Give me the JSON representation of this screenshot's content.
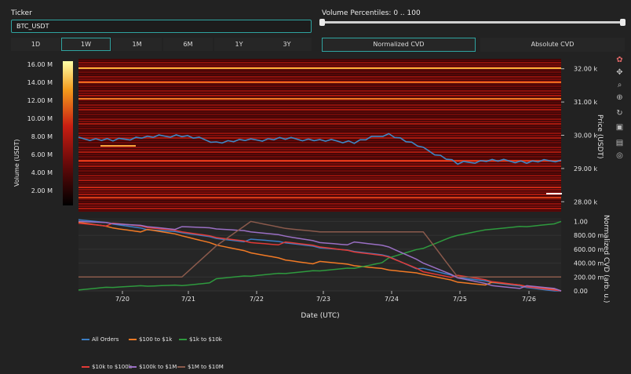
{
  "ticker": {
    "label": "Ticker",
    "value": "BTC_USDT"
  },
  "volume_slider": {
    "label": "Volume Percentiles: 0 .. 100"
  },
  "ranges": [
    "1D",
    "1W",
    "1M",
    "6M",
    "1Y",
    "3Y"
  ],
  "active_range": "1W",
  "toggles": [
    "Normalized CVD",
    "Absolute CVD"
  ],
  "active_toggle": "Normalized CVD",
  "heatmap": {
    "colorbar_ticks": [
      "16.00 M",
      "14.00 M",
      "12.00 M",
      "10.00 M",
      "8.00 M",
      "6.00 M",
      "4.00 M",
      "2.00 M"
    ],
    "colorbar_label": "Volume (USDT)",
    "price_ticks": [
      "32.00 k",
      "31.00 k",
      "30.00 k",
      "29.00 k",
      "28.00 k"
    ],
    "price_label": "Price (USDT)"
  },
  "cvd": {
    "ticks": [
      "1.00",
      "800.00 m",
      "600.00 m",
      "400.00 m",
      "200.00 m",
      "0.00"
    ],
    "label": "Normalized CVD (arb. u.)"
  },
  "x_axis": {
    "ticks": [
      "7/20",
      "7/21",
      "7/22",
      "7/23",
      "7/24",
      "7/25",
      "7/26"
    ],
    "label": "Date (UTC)"
  },
  "legend": [
    {
      "name": "All Orders",
      "color": "#3b7dc4"
    },
    {
      "name": "$100 to $1k",
      "color": "#f27a25"
    },
    {
      "name": "$1k to $10k",
      "color": "#2e9a3e"
    },
    {
      "name": "$10k to $100k",
      "color": "#e23a36"
    },
    {
      "name": "$100k to $1M",
      "color": "#9a6fc4"
    },
    {
      "name": "$1M to $10M",
      "color": "#8b5a4c"
    }
  ],
  "chart_data": {
    "type": "line",
    "x": [
      "7/19 12:00",
      "7/20",
      "7/20 12:00",
      "7/21",
      "7/21 12:00",
      "7/22",
      "7/22 12:00",
      "7/23",
      "7/23 12:00",
      "7/24",
      "7/24 12:00",
      "7/25",
      "7/25 12:00",
      "7/26",
      "7/26 12:00"
    ],
    "price_series": {
      "name": "Price",
      "values": [
        29900,
        29850,
        29950,
        30000,
        29800,
        29850,
        29900,
        29850,
        29800,
        30050,
        29600,
        29150,
        29250,
        29200,
        29250
      ]
    },
    "series": [
      {
        "name": "All Orders",
        "values": [
          1.0,
          0.95,
          0.88,
          0.85,
          0.78,
          0.72,
          0.68,
          0.62,
          0.58,
          0.52,
          0.3,
          0.18,
          0.12,
          0.06,
          0.0
        ]
      },
      {
        "name": "$100 to $1k",
        "values": [
          1.0,
          0.93,
          0.86,
          0.78,
          0.66,
          0.56,
          0.47,
          0.4,
          0.35,
          0.3,
          0.25,
          0.15,
          0.1,
          0.05,
          0.0
        ]
      },
      {
        "name": "$1k to $10k",
        "values": [
          0.0,
          0.05,
          0.08,
          0.1,
          0.15,
          0.2,
          0.25,
          0.3,
          0.35,
          0.45,
          0.6,
          0.8,
          0.9,
          0.95,
          1.0
        ]
      },
      {
        "name": "$10k to $100k",
        "values": [
          1.0,
          0.95,
          0.9,
          0.85,
          0.78,
          0.72,
          0.68,
          0.62,
          0.56,
          0.5,
          0.3,
          0.2,
          0.12,
          0.06,
          0.0
        ]
      },
      {
        "name": "$100k to $1M",
        "values": [
          1.0,
          0.98,
          0.95,
          0.9,
          0.88,
          0.85,
          0.8,
          0.72,
          0.68,
          0.62,
          0.4,
          0.2,
          0.1,
          0.05,
          0.0
        ]
      },
      {
        "name": "$1M to $10M",
        "values": [
          0.2,
          0.2,
          0.2,
          0.2,
          0.65,
          1.0,
          0.9,
          0.85,
          0.85,
          0.85,
          0.85,
          0.2,
          0.2,
          0.2,
          0.2
        ]
      }
    ],
    "price_ylim": [
      27700,
      32300
    ],
    "cvd_ylim": [
      0,
      1.05
    ],
    "colors": {
      "All Orders": "#3b7dc4",
      "$100 to $1k": "#f27a25",
      "$1k to $10k": "#2e9a3e",
      "$10k to $100k": "#e23a36",
      "$100k to $1M": "#9a6fc4",
      "$1M to $10M": "#8b5a4c"
    }
  }
}
